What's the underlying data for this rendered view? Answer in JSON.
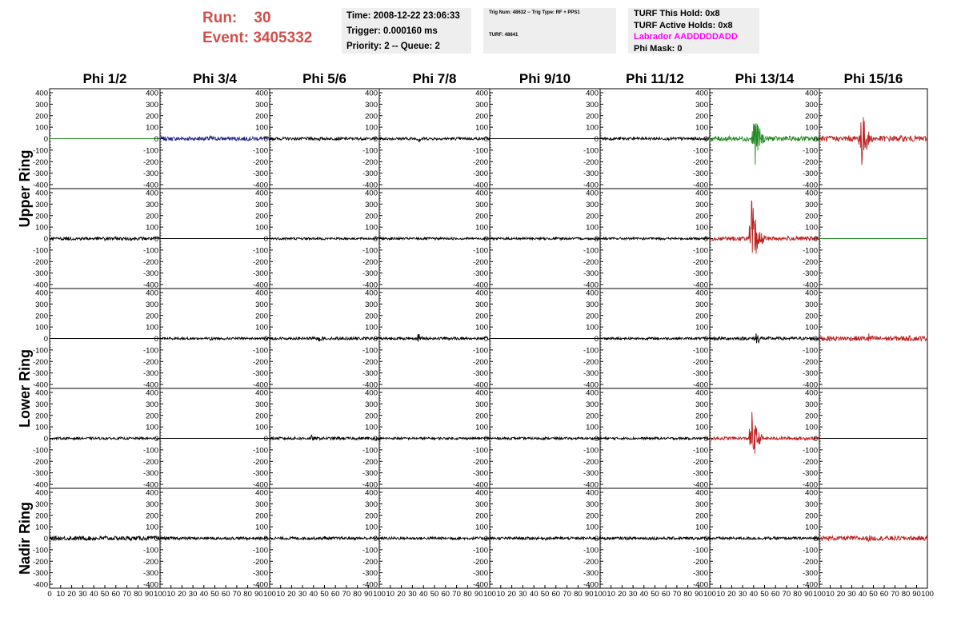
{
  "header": {
    "run_label": "Run:",
    "run_value": "30",
    "event_label": "Event:",
    "event_value": "3405332"
  },
  "info_box_1": {
    "time": "Time: 2008-12-22 23:06:33",
    "trigger": "Trigger: 0.000160 ms",
    "priority": "Priority: 2 -- Queue: 2"
  },
  "info_box_2": {
    "trig_line": "Trig Num: 48632 -- Trig Type: RF + PPS1",
    "turf_line": "TURF: 48641"
  },
  "info_box_3": {
    "this_hold": "TURF This Hold: 0x8",
    "active_holds": "TURF Active Holds: 0x8",
    "labrador": "Labrador AADDDDDADD",
    "phi_mask": "Phi Mask: 0"
  },
  "colors": {
    "header_red": "#d0504a",
    "magenta": "#ff00ff",
    "black": "#000000",
    "green": "#228822",
    "blue": "#222288",
    "red": "#bb2222"
  },
  "chart_data": {
    "type": "line",
    "columns": [
      "Phi 1/2",
      "Phi 3/4",
      "Phi 5/6",
      "Phi 7/8",
      "Phi 9/10",
      "Phi 11/12",
      "Phi 13/14",
      "Phi 15/16"
    ],
    "ring_labels": [
      "Upper Ring",
      "Lower Ring",
      "Nadir Ring"
    ],
    "rows_per_ring": [
      2,
      2,
      1
    ],
    "ylim": [
      -400,
      400
    ],
    "y_ticks": [
      400,
      300,
      200,
      100,
      0,
      -100,
      -200,
      -300,
      -400
    ],
    "xlim": [
      0,
      100
    ],
    "x_ticks": [
      0,
      10,
      20,
      30,
      40,
      50,
      60,
      70,
      80,
      90,
      100
    ],
    "grid": false,
    "panels": [
      [
        {
          "color": "green",
          "flat": true
        },
        {
          "color": "blue",
          "amp": 18,
          "peak": 40,
          "at": 45
        },
        {
          "color": "black",
          "amp": 12,
          "peak": 25,
          "at": 45
        },
        {
          "color": "black",
          "amp": 12,
          "peak": 45,
          "at": 35
        },
        {
          "color": "black",
          "flat": true
        },
        {
          "color": "black",
          "amp": 12,
          "peak": 25,
          "at": 30
        },
        {
          "color": "green",
          "amp": 22,
          "peak": 320,
          "at": 40
        },
        {
          "color": "red",
          "amp": 25,
          "peak": 360,
          "at": 38
        }
      ],
      [
        {
          "color": "black",
          "amp": 14,
          "peak": 30,
          "at": 50
        },
        {
          "color": "black",
          "flat": true
        },
        {
          "color": "black",
          "amp": 10,
          "peak": 15,
          "at": 50
        },
        {
          "color": "black",
          "amp": 10,
          "peak": 15,
          "at": 50
        },
        {
          "color": "black",
          "amp": 10,
          "peak": 15,
          "at": 50
        },
        {
          "color": "black",
          "amp": 10,
          "peak": 15,
          "at": 50
        },
        {
          "color": "red",
          "amp": 18,
          "peak": 400,
          "at": 38
        },
        {
          "color": "green",
          "flat": true
        }
      ],
      [
        {
          "color": "black",
          "flat": true
        },
        {
          "color": "black",
          "amp": 10,
          "peak": 25,
          "at": 45
        },
        {
          "color": "black",
          "amp": 12,
          "peak": 30,
          "at": 45
        },
        {
          "color": "black",
          "amp": 12,
          "peak": 55,
          "at": 35
        },
        {
          "color": "black",
          "flat": true
        },
        {
          "color": "black",
          "amp": 10,
          "peak": 15,
          "at": 50
        },
        {
          "color": "black",
          "amp": 14,
          "peak": 70,
          "at": 42
        },
        {
          "color": "red",
          "amp": 22,
          "peak": 60,
          "at": 45
        }
      ],
      [
        {
          "color": "black",
          "amp": 10,
          "peak": 15,
          "at": 50
        },
        {
          "color": "black",
          "flat": true
        },
        {
          "color": "black",
          "amp": 12,
          "peak": 30,
          "at": 38
        },
        {
          "color": "black",
          "amp": 10,
          "peak": 15,
          "at": 50
        },
        {
          "color": "black",
          "amp": 10,
          "peak": 15,
          "at": 50
        },
        {
          "color": "black",
          "amp": 10,
          "peak": 15,
          "at": 50
        },
        {
          "color": "red",
          "amp": 14,
          "peak": 280,
          "at": 38
        },
        {
          "color": "black",
          "flat": true
        }
      ],
      [
        {
          "color": "black",
          "amp": 18,
          "peak": 30,
          "at": 50
        },
        {
          "color": "black",
          "amp": 12,
          "peak": 20,
          "at": 50
        },
        {
          "color": "black",
          "amp": 12,
          "peak": 20,
          "at": 50
        },
        {
          "color": "black",
          "amp": 12,
          "peak": 20,
          "at": 50
        },
        {
          "color": "black",
          "amp": 12,
          "peak": 20,
          "at": 50
        },
        {
          "color": "black",
          "amp": 12,
          "peak": 20,
          "at": 50
        },
        {
          "color": "black",
          "amp": 12,
          "peak": 20,
          "at": 50
        },
        {
          "color": "red",
          "amp": 20,
          "peak": 40,
          "at": 45
        }
      ]
    ]
  }
}
